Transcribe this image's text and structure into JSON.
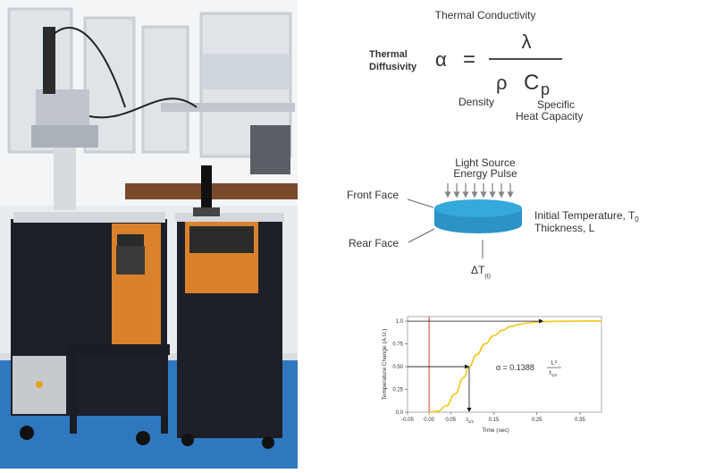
{
  "formula": {
    "top_label": "Thermal Conductivity",
    "left_label_line1": "Thermal",
    "left_label_line2": "Diffusivity",
    "alpha": "α",
    "equals": "=",
    "numerator": "λ",
    "rho": "ρ",
    "cp": "C",
    "cp_sub": "p",
    "density_label": "Density",
    "specific_line1": "Specific",
    "specific_line2": "Heat Capacity"
  },
  "sample": {
    "light_line1": "Light Source",
    "light_line2": "Energy Pulse",
    "front_face": "Front Face",
    "rear_face": "Rear Face",
    "initial_temp": "Initial Temperature, T",
    "initial_temp_sub": "0",
    "thickness": "Thickness, L",
    "delta_t": "ΔT",
    "delta_t_sub": "(t)"
  },
  "colors": {
    "disc_top": "#35a8dc",
    "disc_side": "#2b93c6",
    "curve": "#f5c518",
    "t0_line": "#d9382a"
  },
  "chart_data": {
    "type": "line",
    "xlabel": "Time (sec)",
    "ylabel": "Temperature Change (A.U.)",
    "xlim": [
      -0.05,
      0.4
    ],
    "ylim": [
      0,
      1.05
    ],
    "x_ticks": [
      "-0.05",
      "0.00",
      "0.05",
      "0.15",
      "0.25",
      "0.35"
    ],
    "x_tick_values": [
      -0.05,
      0.0,
      0.05,
      0.15,
      0.25,
      0.35
    ],
    "y_ticks": [
      "0.0",
      "0.25",
      "0.50",
      "0.75",
      "1.0"
    ],
    "y_tick_values": [
      0.0,
      0.25,
      0.5,
      0.75,
      1.0
    ],
    "t_half_label": "t",
    "t_half_sub": "1/2",
    "t_half_value": 0.093,
    "series": [
      {
        "x": [
          0.0,
          0.02,
          0.04,
          0.06,
          0.08,
          0.093,
          0.11,
          0.13,
          0.15,
          0.17,
          0.19,
          0.21,
          0.23,
          0.25,
          0.27,
          0.3,
          0.35,
          0.4
        ],
        "values": [
          0.0,
          0.01,
          0.07,
          0.2,
          0.38,
          0.5,
          0.63,
          0.75,
          0.84,
          0.9,
          0.94,
          0.965,
          0.98,
          0.99,
          0.995,
          0.998,
          1.0,
          1.0
        ]
      }
    ],
    "annotation": {
      "prefix": "α = 0.1388",
      "num": "L²",
      "den": "t",
      "den_sub": "1/2"
    }
  }
}
